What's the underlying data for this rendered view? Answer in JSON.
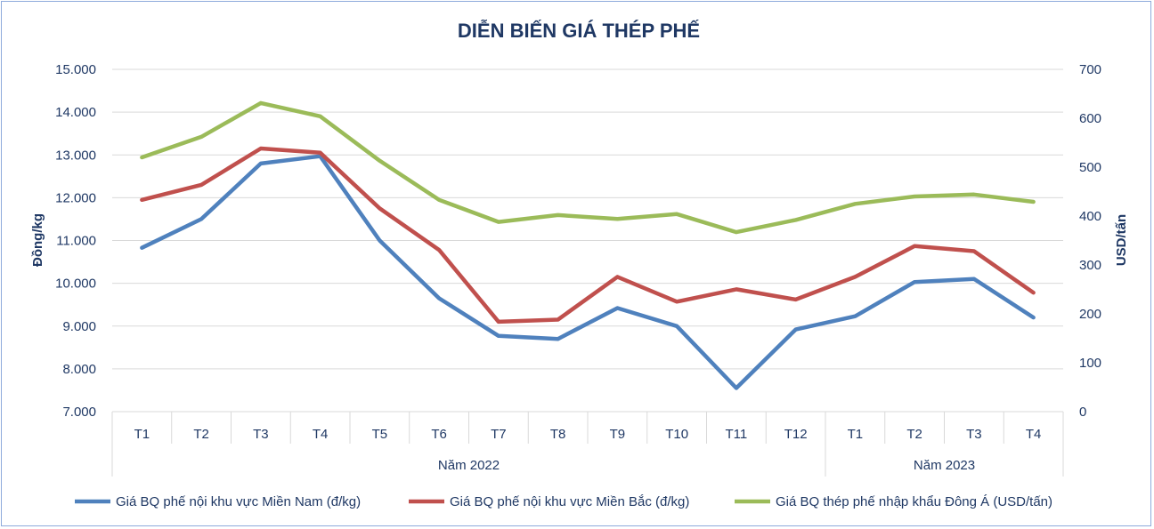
{
  "chart_data": {
    "type": "line",
    "title": "DIỄN BIẾN GIÁ THÉP PHẾ",
    "categories": [
      "T1",
      "T2",
      "T3",
      "T4",
      "T5",
      "T6",
      "T7",
      "T8",
      "T9",
      "T10",
      "T11",
      "T12",
      "T1",
      "T2",
      "T3",
      "T4"
    ],
    "groups": [
      {
        "label": "Năm 2022",
        "start": 0,
        "end": 11
      },
      {
        "label": "Năm 2023",
        "start": 12,
        "end": 15
      }
    ],
    "y_left": {
      "label": "Đồng/kg",
      "range": [
        7000,
        15000
      ],
      "ticks": [
        "7.000",
        "8.000",
        "9.000",
        "10.000",
        "11.000",
        "12.000",
        "13.000",
        "14.000",
        "15.000"
      ]
    },
    "y_right": {
      "label": "USD/tấn",
      "range": [
        0,
        700
      ],
      "ticks": [
        "0",
        "100",
        "200",
        "300",
        "400",
        "500",
        "600",
        "700"
      ]
    },
    "grid": true,
    "legend_position": "bottom",
    "series": [
      {
        "name": "Giá BQ phế nội khu vực Miền Nam (đ/kg)",
        "axis": "left",
        "color": "#4f81bd",
        "values": [
          10830,
          11500,
          12800,
          12970,
          11000,
          9650,
          8770,
          8700,
          9420,
          9000,
          7550,
          8920,
          9230,
          10030,
          10100,
          9200
        ]
      },
      {
        "name": "Giá BQ phế nội khu vực Miền Bắc (đ/kg)",
        "axis": "left",
        "color": "#c0504d",
        "values": [
          11950,
          12300,
          13150,
          13050,
          11750,
          10780,
          9100,
          9150,
          10150,
          9570,
          9860,
          9620,
          10150,
          10870,
          10750,
          9780
        ]
      },
      {
        "name": "Giá BQ thép phế nhập khẩu Đông Á (USD/tấn)",
        "axis": "right",
        "color": "#9bbb59",
        "values": [
          520,
          562,
          631,
          604,
          513,
          433,
          388,
          402,
          394,
          404,
          367,
          392,
          425,
          440,
          444,
          429
        ]
      }
    ]
  }
}
